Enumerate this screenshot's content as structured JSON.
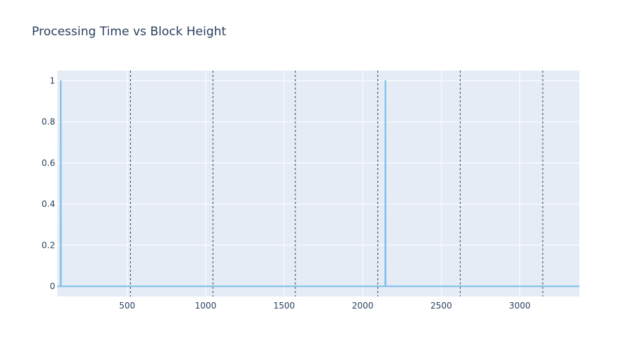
{
  "chart_data": {
    "type": "line",
    "title": "Processing Time vs Block Height",
    "xlabel": "",
    "ylabel": "",
    "xlim": [
      55,
      3380
    ],
    "ylim": [
      -0.05,
      1.05
    ],
    "x_ticks": [
      500,
      1000,
      1500,
      2000,
      2500,
      3000
    ],
    "y_ticks": [
      0,
      0.2,
      0.4,
      0.6,
      0.8,
      1
    ],
    "y_tick_labels": [
      "0",
      "0.2",
      "0.4",
      "0.6",
      "0.8",
      "1"
    ],
    "grid": true,
    "legend": "none",
    "vertical_lines": [
      521,
      1046,
      1571,
      2096,
      2621,
      3146
    ],
    "series": [
      {
        "color": "#7cc0ea",
        "x": [
          55,
          76,
          77,
          78,
          79,
          2143,
          2144,
          2145,
          2146,
          3380
        ],
        "y": [
          0,
          0,
          1,
          1,
          0,
          0,
          1,
          1,
          0,
          0
        ]
      }
    ]
  },
  "colors": {
    "plot_bg": "#e5ecf6",
    "grid": "#ffffff",
    "vline": "#2a3f5f",
    "text": "#2a3f5f"
  }
}
